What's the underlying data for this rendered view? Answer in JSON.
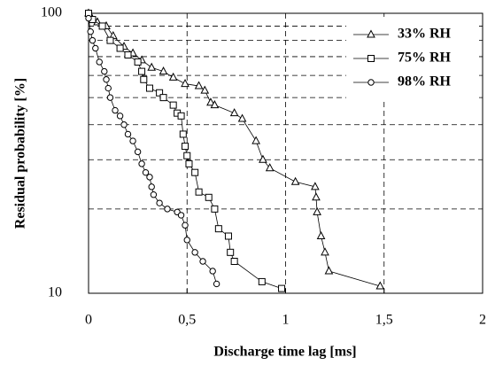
{
  "chart_data": {
    "type": "line",
    "xlabel": "Discharge time lag [ms]",
    "ylabel": "Residual probability [%]",
    "xlim": [
      0,
      2
    ],
    "ylim": [
      10,
      100
    ],
    "log_y": true,
    "grid": true,
    "xticks": [
      0,
      {
        "value": 0.5,
        "label": "0,5"
      },
      1,
      {
        "value": 1.5,
        "label": "1,5"
      },
      2
    ],
    "yticks": [
      10,
      100
    ],
    "y_minor_grid": [
      20,
      30,
      40,
      50,
      60,
      70,
      80,
      90
    ],
    "legend": "upper right",
    "series": [
      {
        "name": "33% RH",
        "color": "#000000",
        "marker": "triangle",
        "x": [
          0,
          0.01,
          0.045,
          0.09,
          0.125,
          0.18,
          0.225,
          0.27,
          0.32,
          0.38,
          0.43,
          0.49,
          0.56,
          0.59,
          0.62,
          0.64,
          0.74,
          0.78,
          0.85,
          0.885,
          0.92,
          1.05,
          1.15,
          1.155,
          1.16,
          1.18,
          1.2,
          1.22,
          1.48
        ],
        "values": [
          100,
          98,
          93,
          90,
          83,
          76,
          72,
          68,
          64,
          62,
          59,
          56,
          55,
          53,
          48,
          47,
          44,
          42,
          35,
          30,
          28,
          25,
          24,
          22,
          19.5,
          16,
          14,
          12,
          10.6
        ]
      },
      {
        "name": "75% RH",
        "color": "#000000",
        "marker": "square",
        "x": [
          0,
          0.02,
          0.07,
          0.11,
          0.16,
          0.2,
          0.25,
          0.27,
          0.28,
          0.31,
          0.36,
          0.38,
          0.43,
          0.45,
          0.47,
          0.48,
          0.49,
          0.5,
          0.51,
          0.54,
          0.56,
          0.61,
          0.64,
          0.66,
          0.71,
          0.72,
          0.74,
          0.88,
          0.98
        ],
        "values": [
          100,
          95,
          90,
          80,
          75,
          71,
          67,
          62,
          58,
          54,
          52,
          50,
          47,
          44,
          43,
          37,
          33.5,
          31,
          29,
          27,
          23,
          22,
          20,
          17,
          16,
          14,
          13,
          11,
          10.4
        ]
      },
      {
        "name": "98% RH",
        "color": "#000000",
        "marker": "circle",
        "x": [
          0,
          0.01,
          0.02,
          0.035,
          0.055,
          0.08,
          0.09,
          0.1,
          0.11,
          0.135,
          0.16,
          0.18,
          0.2,
          0.225,
          0.25,
          0.27,
          0.29,
          0.31,
          0.32,
          0.33,
          0.36,
          0.4,
          0.45,
          0.47,
          0.49,
          0.5,
          0.54,
          0.58,
          0.63,
          0.65
        ],
        "values": [
          96,
          86,
          80,
          75,
          67,
          62,
          58,
          54,
          50,
          45,
          43,
          40,
          37,
          35,
          32,
          29,
          27,
          26,
          24,
          22.5,
          21,
          20,
          19.5,
          19,
          17.5,
          15.5,
          14,
          13,
          12,
          10.8
        ]
      }
    ]
  }
}
